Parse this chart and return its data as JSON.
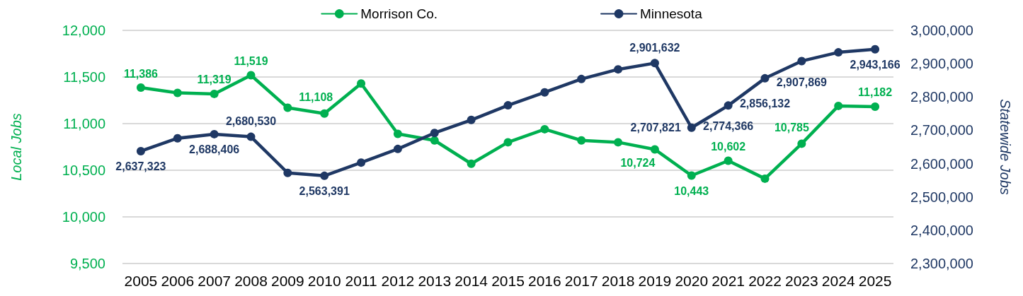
{
  "chart_data": {
    "type": "line",
    "categories": [
      "2005",
      "2006",
      "2007",
      "2008",
      "2009",
      "2010",
      "2011",
      "2012",
      "2013",
      "2014",
      "2015",
      "2016",
      "2017",
      "2018",
      "2019",
      "2020",
      "2021",
      "2022",
      "2023",
      "2024",
      "2025"
    ],
    "series": [
      {
        "name": "Morrison Co.",
        "color": "#00b050",
        "values": [
          11386,
          11330,
          11319,
          11519,
          11170,
          11108,
          11430,
          10890,
          10820,
          10570,
          10800,
          10940,
          10820,
          10800,
          10724,
          10443,
          10602,
          10410,
          10785,
          11190,
          11182
        ],
        "value_labels": [
          "11,386",
          null,
          "11,319",
          "11,519",
          null,
          "11,108",
          null,
          null,
          null,
          null,
          null,
          null,
          null,
          null,
          "10,724",
          "10,443",
          "10,602",
          null,
          "10,785",
          null,
          "11,182"
        ]
      },
      {
        "name": "Minnesota",
        "color": "#1f3864",
        "axis": "y2",
        "values": [
          2637323,
          2676000,
          2688406,
          2680530,
          2572000,
          2563391,
          2603000,
          2644000,
          2692000,
          2731000,
          2775000,
          2814000,
          2854000,
          2883000,
          2901632,
          2707821,
          2774366,
          2856132,
          2907869,
          2934000,
          2943166
        ],
        "value_labels": [
          "2,637,323",
          null,
          "2,688,406",
          "2,680,530",
          null,
          "2,563,391",
          null,
          null,
          null,
          null,
          null,
          null,
          null,
          null,
          "2,901,632",
          "2,707,821",
          "2,774,366",
          "2,856,132",
          "2,907,869",
          null,
          "2,943,166"
        ]
      }
    ],
    "ylabel": "Local Jobs",
    "y2label": "Statewide Jobs",
    "ylim": [
      9500,
      12000
    ],
    "yticks": [
      {
        "value": 9500,
        "label": "9,500"
      },
      {
        "value": 10000,
        "label": "10,000"
      },
      {
        "value": 10500,
        "label": "10,500"
      },
      {
        "value": 11000,
        "label": "11,000"
      },
      {
        "value": 11500,
        "label": "11,500"
      },
      {
        "value": 12000,
        "label": "12,000"
      }
    ],
    "y2lim": [
      2300000,
      3000000
    ],
    "y2ticks": [
      {
        "value": 2300000,
        "label": "2,300,000"
      },
      {
        "value": 2400000,
        "label": "2,400,000"
      },
      {
        "value": 2500000,
        "label": "2,500,000"
      },
      {
        "value": 2600000,
        "label": "2,600,000"
      },
      {
        "value": 2700000,
        "label": "2,700,000"
      },
      {
        "value": 2800000,
        "label": "2,800,000"
      },
      {
        "value": 2900000,
        "label": "2,900,000"
      },
      {
        "value": 3000000,
        "label": "3,000,000"
      }
    ],
    "grid": "y",
    "legend": "top",
    "marker": "circle",
    "line_style": "solid"
  }
}
